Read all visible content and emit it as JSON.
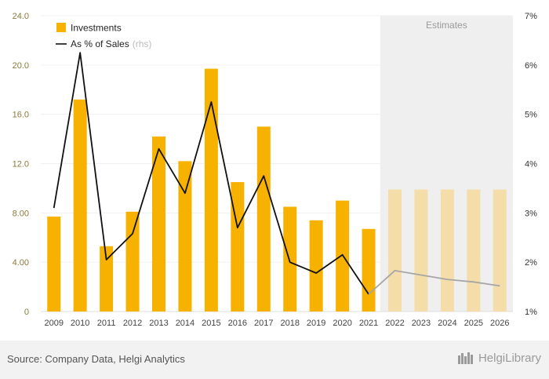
{
  "chart_data": {
    "type": "bar",
    "categories": [
      "2009",
      "2010",
      "2011",
      "2012",
      "2013",
      "2014",
      "2015",
      "2016",
      "2017",
      "2018",
      "2019",
      "2020",
      "2021",
      "2022",
      "2023",
      "2024",
      "2025",
      "2026"
    ],
    "series": [
      {
        "name": "Investments",
        "axis": "left",
        "values": [
          7.7,
          17.2,
          5.3,
          8.1,
          14.2,
          12.2,
          19.7,
          10.5,
          15.0,
          8.5,
          7.4,
          9.0,
          6.7,
          9.9,
          9.9,
          9.9,
          9.9,
          9.9
        ],
        "estimate_from_index": 13
      },
      {
        "name": "As % of Sales",
        "name_suffix": "(rhs)",
        "axis": "right",
        "type": "line",
        "values": [
          3.1,
          6.25,
          2.05,
          2.58,
          4.3,
          3.4,
          5.25,
          2.7,
          3.75,
          2.0,
          1.78,
          2.15,
          1.35,
          1.83,
          1.74,
          1.65,
          1.6,
          1.52
        ],
        "estimate_from_index": 12
      }
    ],
    "y_left": {
      "ylim": [
        0,
        24
      ],
      "ticks": [
        "0",
        "4.00",
        "8.00",
        "12.0",
        "16.0",
        "20.0",
        "24.0"
      ],
      "tick_values": [
        0,
        4,
        8,
        12,
        16,
        20,
        24
      ]
    },
    "y_right": {
      "ylim": [
        1,
        7
      ],
      "ticks": [
        "1%",
        "2%",
        "3%",
        "4%",
        "5%",
        "6%",
        "7%"
      ],
      "tick_values": [
        1,
        2,
        3,
        4,
        5,
        6,
        7
      ]
    },
    "estimates_label": "Estimates",
    "estimates_start_category": "2022",
    "colors": {
      "bar": "#f7b200",
      "bar_estimate": "#f5ddaa",
      "line": "#111111",
      "line_estimate": "#a6a6a6",
      "estimate_band": "#efefef",
      "grid": "#f0f0f0"
    },
    "legend_position": "top-left"
  },
  "footer": {
    "source": "Source: Company Data, Helgi Analytics",
    "brand": "HelgiLibrary"
  }
}
